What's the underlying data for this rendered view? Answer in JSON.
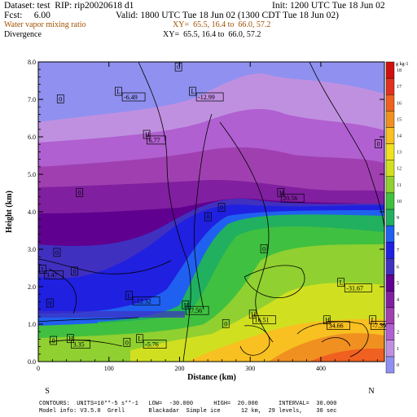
{
  "header": {
    "dataset": "Dataset: test  RIP: rip20020618 d1",
    "init": "Init: 1200 UTC Tue 18 Jun 02",
    "fcst": "Fcst:     6.00",
    "valid": "Valid: 1800 UTC Tue 18 Jun 02 (1300 CDT Tue 18 Jun 02)",
    "field1": "Water vapor mixing ratio",
    "xy1": "XY=  65.5, 16.4 to  66.0, 57.2",
    "field2": "Divergence",
    "xy2": "XY=  65.5, 16.4 to  66.0, 57.2"
  },
  "footer": {
    "contours": "CONTOURS:  UNITS=10**-5 s**-1   LOW=  -30.000      HIGH=  20.000      INTERVAL=  30.000",
    "model": "Model info: V3.5.0  Grell       Blackadar  Simple ice      12 km,  29 levels,    30 sec"
  },
  "colors": {
    "colorbar": [
      "#9090f0",
      "#c090e0",
      "#b060d0",
      "#a040b0",
      "#8020a0",
      "#600090",
      "#4030c0",
      "#2020e0",
      "#2060f0",
      "#20b060",
      "#40c040",
      "#90d030",
      "#d0e020",
      "#f0e020",
      "#f8c020",
      "#f09020",
      "#f06020",
      "#e03020",
      "#d01010"
    ]
  },
  "chart_data": {
    "type": "heatmap",
    "xlabel": "Distance (km)",
    "ylabel": "Height (km)",
    "x_ticks": [
      "0",
      "100",
      "200",
      "300",
      "400"
    ],
    "y_ticks": [
      "0.0",
      "1.0",
      "2.0",
      "3.0",
      "4.0",
      "5.0",
      "6.0",
      "7.0",
      "8.0"
    ],
    "xlim": [
      0,
      490
    ],
    "ylim": [
      0,
      8
    ],
    "left_end_label": "S",
    "right_end_label": "N",
    "colorbar_unit": "g kg-1",
    "colorbar_ticks": [
      "0",
      "1",
      "2",
      "3",
      "4",
      "5",
      "6",
      "7",
      "8",
      "9",
      "10",
      "11",
      "12",
      "13",
      "14",
      "15",
      "16",
      "17",
      "18"
    ],
    "contour_labels": [
      {
        "text": "0",
        "x": 195,
        "y": 7.8
      },
      {
        "text": "L",
        "x": 110,
        "y": 7.15
      },
      {
        "text": "-6.49",
        "x": 120,
        "y": 7.0
      },
      {
        "text": "L",
        "x": 215,
        "y": 7.15
      },
      {
        "text": "-12.99",
        "x": 225,
        "y": 7.0
      },
      {
        "text": "0",
        "x": 28,
        "y": 6.95
      },
      {
        "text": "H",
        "x": 150,
        "y": 6.0
      },
      {
        "text": "6.77",
        "x": 155,
        "y": 5.85
      },
      {
        "text": "0",
        "x": 478,
        "y": 5.75
      },
      {
        "text": "0",
        "x": 55,
        "y": 4.45
      },
      {
        "text": "H",
        "x": 340,
        "y": 4.45
      },
      {
        "text": "20.56",
        "x": 345,
        "y": 4.3
      },
      {
        "text": "0",
        "x": 256,
        "y": 4.05
      },
      {
        "text": "0",
        "x": 237,
        "y": 3.8
      },
      {
        "text": "0",
        "x": 316,
        "y": 2.95
      },
      {
        "text": "0",
        "x": 23,
        "y": 2.85
      },
      {
        "text": "0",
        "x": 48,
        "y": 2.35
      },
      {
        "text": "L",
        "x": 3,
        "y": 2.4
      },
      {
        "text": "3.47",
        "x": 10,
        "y": 2.25
      },
      {
        "text": "0",
        "x": 13,
        "y": 1.5
      },
      {
        "text": "L",
        "x": 425,
        "y": 2.05
      },
      {
        "text": "-31.67",
        "x": 435,
        "y": 1.9
      },
      {
        "text": "L",
        "x": 125,
        "y": 1.7
      },
      {
        "text": "-12.32",
        "x": 135,
        "y": 1.55
      },
      {
        "text": "H",
        "x": 205,
        "y": 1.45
      },
      {
        "text": "17.56",
        "x": 210,
        "y": 1.3
      },
      {
        "text": "H",
        "x": 300,
        "y": 1.2
      },
      {
        "text": "16.51",
        "x": 305,
        "y": 1.05
      },
      {
        "text": "H",
        "x": 405,
        "y": 1.05
      },
      {
        "text": "34.66",
        "x": 410,
        "y": 0.9
      },
      {
        "text": "L",
        "x": 470,
        "y": 1.05
      },
      {
        "text": "-7.39",
        "x": 472,
        "y": 0.9
      },
      {
        "text": "0",
        "x": 262,
        "y": 0.95
      },
      {
        "text": "0",
        "x": 18,
        "y": 0.5
      },
      {
        "text": "H",
        "x": 42,
        "y": 0.55
      },
      {
        "text": "3.35",
        "x": 48,
        "y": 0.4
      },
      {
        "text": "0",
        "x": 122,
        "y": 0.45
      },
      {
        "text": "L",
        "x": 140,
        "y": 0.55
      },
      {
        "text": "-5.76",
        "x": 150,
        "y": 0.4
      }
    ]
  }
}
